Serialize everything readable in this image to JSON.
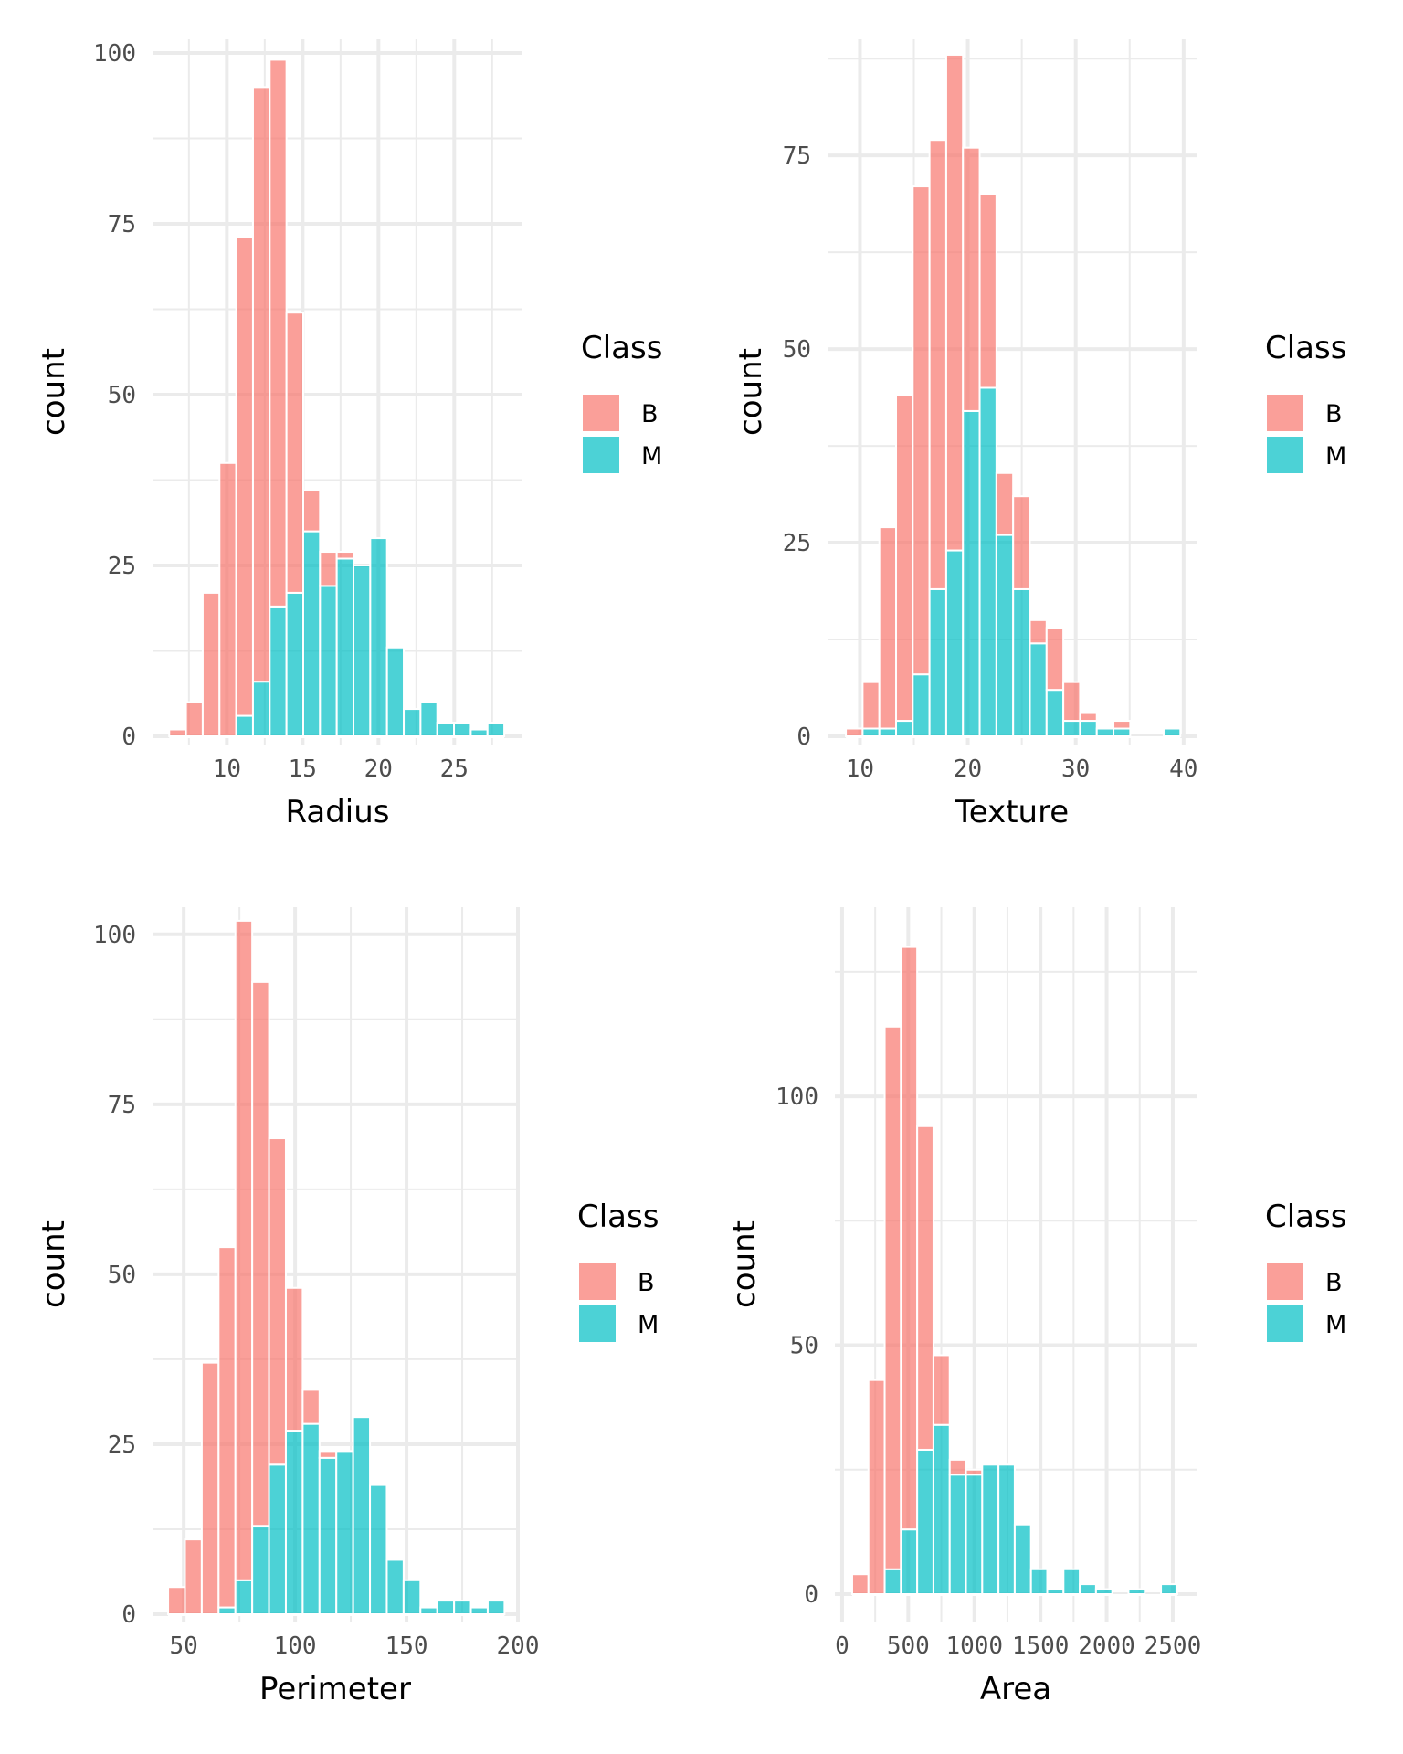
{
  "chart_data": [
    {
      "type": "bar",
      "subtype": "stacked-histogram",
      "title": "",
      "xlabel": "Radius",
      "ylabel": "count",
      "x_ticks": [
        10,
        15,
        20,
        25
      ],
      "y_ticks": [
        0,
        25,
        50,
        75,
        100
      ],
      "xlim": [
        5.1,
        29.5
      ],
      "ylim": [
        0,
        102
      ],
      "bin_range": [
        6.2,
        28.3
      ],
      "grid": true,
      "legend": {
        "title": "Class",
        "position": "right"
      },
      "series": [
        {
          "name": "M",
          "color": "#00BFC4",
          "values": [
            0,
            0,
            0,
            0,
            3,
            8,
            19,
            21,
            30,
            22,
            26,
            25,
            29,
            13,
            4,
            5,
            2,
            2,
            1,
            2
          ]
        },
        {
          "name": "B",
          "color": "#F8766D",
          "values": [
            1,
            5,
            21,
            40,
            70,
            87,
            80,
            41,
            6,
            5,
            1,
            0,
            0,
            0,
            0,
            0,
            0,
            0,
            0,
            0
          ]
        }
      ]
    },
    {
      "type": "bar",
      "subtype": "stacked-histogram",
      "title": "",
      "xlabel": "Texture",
      "ylabel": "count",
      "x_ticks": [
        10,
        20,
        30,
        40
      ],
      "y_ticks": [
        0,
        25,
        50,
        75
      ],
      "xlim": [
        7.0,
        41.2
      ],
      "ylim": [
        0,
        90
      ],
      "bin_range": [
        8.7,
        39.7
      ],
      "grid": true,
      "legend": {
        "title": "Class",
        "position": "right"
      },
      "series": [
        {
          "name": "M",
          "color": "#00BFC4",
          "values": [
            0,
            1,
            1,
            2,
            8,
            19,
            24,
            42,
            45,
            26,
            19,
            12,
            6,
            2,
            2,
            1,
            1,
            0,
            0,
            1
          ]
        },
        {
          "name": "B",
          "color": "#F8766D",
          "values": [
            1,
            6,
            26,
            42,
            63,
            58,
            64,
            34,
            25,
            8,
            12,
            3,
            8,
            5,
            1,
            0,
            1,
            0,
            0,
            0
          ]
        }
      ]
    },
    {
      "type": "bar",
      "subtype": "stacked-histogram",
      "title": "",
      "xlabel": "Perimeter",
      "ylabel": "count",
      "x_ticks": [
        50,
        100,
        150,
        200
      ],
      "y_ticks": [
        0,
        25,
        50,
        75,
        100
      ],
      "xlim": [
        36,
        200
      ],
      "ylim": [
        0,
        104
      ],
      "bin_range": [
        43,
        194
      ],
      "grid": true,
      "legend": {
        "title": "Class",
        "position": "right"
      },
      "series": [
        {
          "name": "M",
          "color": "#00BFC4",
          "values": [
            0,
            0,
            0,
            1,
            5,
            13,
            22,
            27,
            28,
            23,
            24,
            29,
            19,
            8,
            5,
            1,
            2,
            2,
            1,
            2
          ]
        },
        {
          "name": "B",
          "color": "#F8766D",
          "values": [
            4,
            11,
            37,
            53,
            97,
            80,
            48,
            21,
            5,
            1,
            0,
            0,
            0,
            0,
            0,
            0,
            0,
            0,
            0,
            0
          ]
        }
      ]
    },
    {
      "type": "bar",
      "subtype": "stacked-histogram",
      "title": "",
      "xlabel": "Area",
      "ylabel": "count",
      "x_ticks": [
        0,
        500,
        1000,
        1500,
        2000,
        2500
      ],
      "y_ticks": [
        0,
        50,
        100
      ],
      "xlim": [
        -55,
        2680
      ],
      "ylim": [
        0,
        138
      ],
      "bin_range": [
        76,
        2534
      ],
      "grid": true,
      "legend": {
        "title": "Class",
        "position": "right"
      },
      "series": [
        {
          "name": "M",
          "color": "#00BFC4",
          "values": [
            0,
            0,
            5,
            13,
            29,
            34,
            24,
            24,
            26,
            26,
            14,
            5,
            1,
            5,
            2,
            1,
            0,
            1,
            0,
            2
          ]
        },
        {
          "name": "B",
          "color": "#F8766D",
          "values": [
            4,
            43,
            109,
            117,
            65,
            14,
            3,
            1,
            0,
            0,
            0,
            0,
            0,
            0,
            0,
            0,
            0,
            0,
            0,
            0
          ]
        }
      ]
    }
  ],
  "legend_items": [
    "B",
    "M"
  ]
}
